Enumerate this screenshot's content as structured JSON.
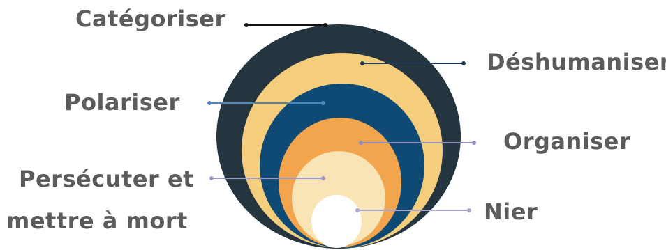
{
  "stages": [
    {
      "key": "categoriser",
      "label": "Catégoriser",
      "color": "#243540",
      "line_color": "#111111"
    },
    {
      "key": "deshumaniser",
      "label": "Déshumaniser",
      "color": "#f4ce7c",
      "line_color": "#1e3a55"
    },
    {
      "key": "polariser",
      "label": "Polariser",
      "color": "#0e4a73",
      "line_color": "#4a86c0"
    },
    {
      "key": "organiser",
      "label": "Organiser",
      "color": "#f3a54e",
      "line_color": "#8e8ec0"
    },
    {
      "key": "persecuter",
      "label_line1": "Persécuter et",
      "label_line2": "mettre à mort",
      "color": "#f8e4b4",
      "line_color": "#9a9ac8"
    },
    {
      "key": "nier",
      "label": "Nier",
      "color": "#ffffff",
      "line_color": "#a8a8d0"
    }
  ]
}
